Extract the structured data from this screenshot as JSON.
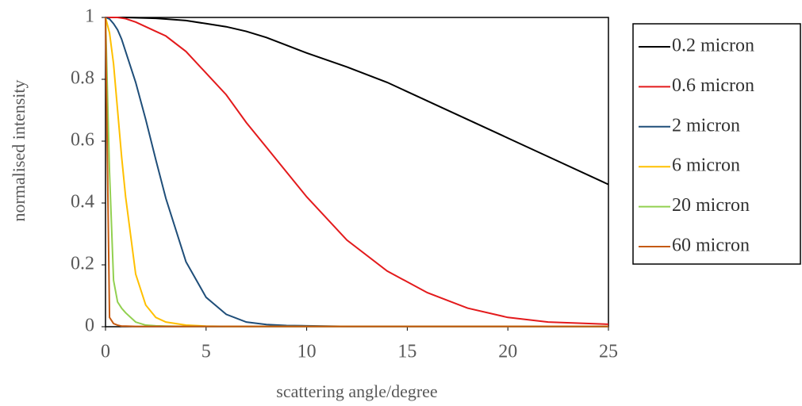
{
  "chart_data": {
    "type": "line",
    "xlabel": "scattering angle/degree",
    "ylabel": "normalised intensity",
    "x": [
      0,
      0.2,
      0.4,
      0.6,
      0.8,
      1,
      1.5,
      2,
      2.5,
      3,
      4,
      5,
      6,
      7,
      8,
      9,
      10,
      12,
      14,
      16,
      18,
      20,
      22,
      25
    ],
    "series": [
      {
        "name": "0.2 micron",
        "color": "#000000",
        "values": [
          1,
          1,
          1,
          1,
          1,
          1,
          0.999,
          0.998,
          0.997,
          0.995,
          0.99,
          0.98,
          0.97,
          0.955,
          0.935,
          0.91,
          0.885,
          0.84,
          0.79,
          0.73,
          0.67,
          0.61,
          0.55,
          0.46
        ]
      },
      {
        "name": "0.6 micron",
        "color": "#e31a1c",
        "values": [
          1,
          1,
          1,
          1,
          0.998,
          0.996,
          0.985,
          0.97,
          0.955,
          0.94,
          0.89,
          0.82,
          0.75,
          0.66,
          0.58,
          0.5,
          0.42,
          0.28,
          0.18,
          0.11,
          0.06,
          0.03,
          0.015,
          0.008
        ]
      },
      {
        "name": "2 micron",
        "color": "#1f4e79",
        "values": [
          1,
          0.995,
          0.98,
          0.96,
          0.93,
          0.89,
          0.79,
          0.67,
          0.54,
          0.415,
          0.21,
          0.095,
          0.04,
          0.015,
          0.007,
          0.004,
          0.003,
          0.001,
          0.001,
          0.001,
          0.001,
          0.001,
          0.001,
          0.001
        ]
      },
      {
        "name": "6 micron",
        "color": "#ffc000",
        "values": [
          1,
          0.95,
          0.85,
          0.7,
          0.55,
          0.42,
          0.17,
          0.07,
          0.03,
          0.015,
          0.005,
          0.002,
          0.001,
          0.001,
          0.001,
          0.001,
          0.001,
          0.001,
          0.001,
          0.001,
          0.001,
          0.001,
          0.001,
          0.001
        ]
      },
      {
        "name": "20 micron",
        "color": "#92d050",
        "values": [
          1,
          0.5,
          0.15,
          0.08,
          0.06,
          0.045,
          0.015,
          0.005,
          0.003,
          0.002,
          0.001,
          0.001,
          0.001,
          0.001,
          0.001,
          0.001,
          0.001,
          0.001,
          0.001,
          0.001,
          0.001,
          0.001,
          0.001,
          0.001
        ]
      },
      {
        "name": "60 micron",
        "color": "#c55a11",
        "values": [
          1,
          0.03,
          0.01,
          0.005,
          0.002,
          0.002,
          0.001,
          0.001,
          0.001,
          0.001,
          0.001,
          0.001,
          0.001,
          0.001,
          0.001,
          0.001,
          0.001,
          0.001,
          0.001,
          0.001,
          0.001,
          0.001,
          0.001,
          0.001
        ]
      }
    ],
    "xlim": [
      0,
      25
    ],
    "xticks": [
      0,
      5,
      10,
      15,
      20,
      25
    ],
    "ylim": [
      0,
      1
    ],
    "yticks": [
      0,
      0.2,
      0.4,
      0.6,
      0.8,
      1
    ],
    "grid": false,
    "legend": "right"
  }
}
